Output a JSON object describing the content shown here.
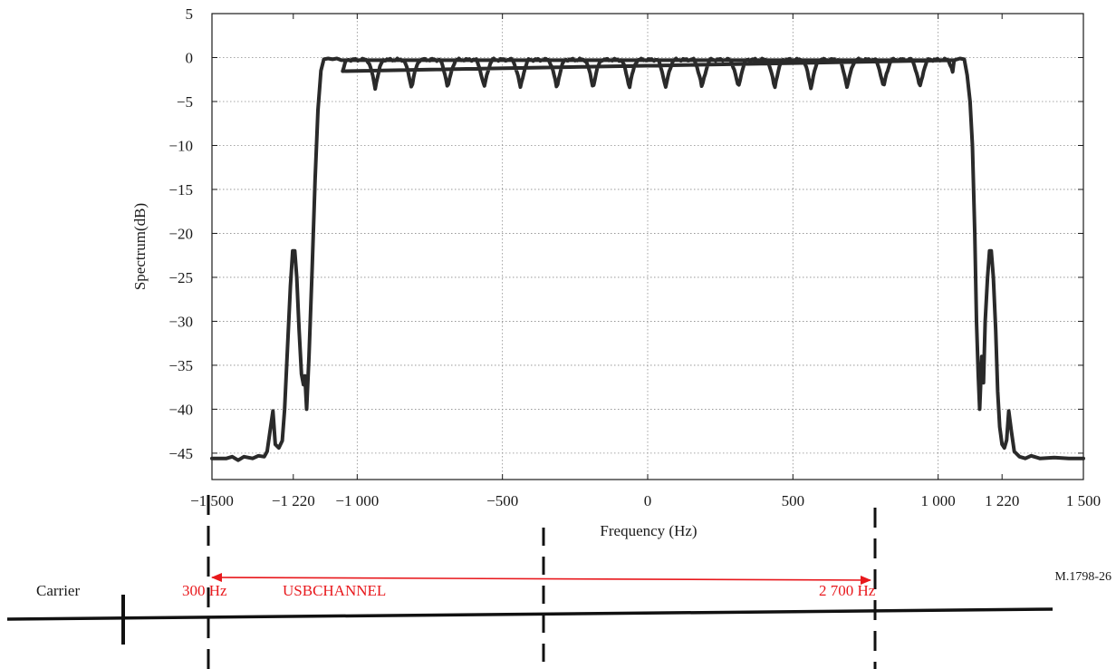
{
  "chart_data": {
    "type": "line",
    "title": "",
    "xlabel": "Frequency (Hz)",
    "ylabel": "Spectrum(dB)",
    "xlim": [
      -1500,
      1500
    ],
    "ylim": [
      -48,
      5
    ],
    "grid": true,
    "x_ticks": [
      {
        "value": -1500,
        "label": "−1 500"
      },
      {
        "value": -1220,
        "label": "−1 220"
      },
      {
        "value": -1000,
        "label": "−1 000"
      },
      {
        "value": -500,
        "label": "−500"
      },
      {
        "value": 0,
        "label": "0"
      },
      {
        "value": 500,
        "label": "500"
      },
      {
        "value": 1000,
        "label": "1 000"
      },
      {
        "value": 1220,
        "label": "1 220"
      },
      {
        "value": 1500,
        "label": "1 500"
      }
    ],
    "y_ticks": [
      {
        "value": 5,
        "label": "5"
      },
      {
        "value": 0,
        "label": "0"
      },
      {
        "value": -5,
        "label": "−5"
      },
      {
        "value": -10,
        "label": "−10"
      },
      {
        "value": -15,
        "label": "−15"
      },
      {
        "value": -20,
        "label": "−20"
      },
      {
        "value": -25,
        "label": "−25"
      },
      {
        "value": -30,
        "label": "−30"
      },
      {
        "value": -35,
        "label": "−35"
      },
      {
        "value": -40,
        "label": "−40"
      },
      {
        "value": -45,
        "label": "−45"
      }
    ],
    "grid_x": [
      -1500,
      -1000,
      -500,
      0,
      500,
      1000,
      1500
    ],
    "grid_y": [
      5,
      0,
      -5,
      -10,
      -15,
      -20,
      -25,
      -30,
      -35,
      -40,
      -45
    ],
    "ripple": {
      "period_hz": 125,
      "phase_hz": -938,
      "depth_db": 3.2,
      "passband_hz": [
        -1050,
        1050
      ]
    },
    "series": [
      {
        "color": "#2a2a2a",
        "points": [
          [
            -1500,
            -45.6
          ],
          [
            -1450,
            -45.6
          ],
          [
            -1430,
            -45.4
          ],
          [
            -1410,
            -45.8
          ],
          [
            -1390,
            -45.4
          ],
          [
            -1360,
            -45.6
          ],
          [
            -1340,
            -45.3
          ],
          [
            -1320,
            -45.4
          ],
          [
            -1310,
            -44.8
          ],
          [
            -1300,
            -42.5
          ],
          [
            -1290,
            -40.2
          ],
          [
            -1282,
            -44.0
          ],
          [
            -1270,
            -44.4
          ],
          [
            -1258,
            -43.6
          ],
          [
            -1250,
            -40.0
          ],
          [
            -1240,
            -33.0
          ],
          [
            -1230,
            -26.0
          ],
          [
            -1222,
            -22.0
          ],
          [
            -1215,
            -22.0
          ],
          [
            -1208,
            -25.0
          ],
          [
            -1200,
            -31.0
          ],
          [
            -1192,
            -36.0
          ],
          [
            -1185,
            -37.2
          ],
          [
            -1180,
            -36.2
          ],
          [
            -1174,
            -40.0
          ],
          [
            -1166,
            -34.0
          ],
          [
            -1155,
            -24.0
          ],
          [
            -1145,
            -14.0
          ],
          [
            -1135,
            -6.0
          ],
          [
            -1125,
            -1.5
          ],
          [
            -1115,
            -0.2
          ],
          [
            -1100,
            -0.1
          ],
          [
            -1085,
            -0.2
          ],
          [
            -1070,
            -0.1
          ],
          [
            -1055,
            -0.3
          ],
          [
            1055,
            -0.3
          ],
          [
            1075,
            -0.1
          ],
          [
            1090,
            -0.2
          ],
          [
            1100,
            -2.0
          ],
          [
            1110,
            -5.0
          ],
          [
            1118,
            -10.0
          ],
          [
            1126,
            -20.0
          ],
          [
            1132,
            -30.0
          ],
          [
            1138,
            -36.0
          ],
          [
            1143,
            -40.0
          ],
          [
            1150,
            -34.0
          ],
          [
            1156,
            -37.0
          ],
          [
            1162,
            -30.0
          ],
          [
            1170,
            -25.0
          ],
          [
            1177,
            -22.0
          ],
          [
            1183,
            -22.0
          ],
          [
            1190,
            -25.0
          ],
          [
            1198,
            -31.0
          ],
          [
            1205,
            -38.0
          ],
          [
            1212,
            -42.0
          ],
          [
            1220,
            -44.0
          ],
          [
            1228,
            -44.4
          ],
          [
            1236,
            -43.5
          ],
          [
            1243,
            -40.2
          ],
          [
            1252,
            -42.5
          ],
          [
            1262,
            -44.8
          ],
          [
            1280,
            -45.4
          ],
          [
            1300,
            -45.6
          ],
          [
            1320,
            -45.3
          ],
          [
            1350,
            -45.6
          ],
          [
            1400,
            -45.5
          ],
          [
            1450,
            -45.6
          ],
          [
            1500,
            -45.6
          ]
        ]
      }
    ]
  },
  "annotations": {
    "figure_ref": "M.1798-26",
    "carrier": "Carrier",
    "f_low": "300 Hz",
    "channel": "USBCHANNEL",
    "f_high": "2 700 Hz",
    "colors": {
      "curve": "#2a2a2a",
      "arrow": "#e8181c",
      "grid": "#888888"
    }
  }
}
